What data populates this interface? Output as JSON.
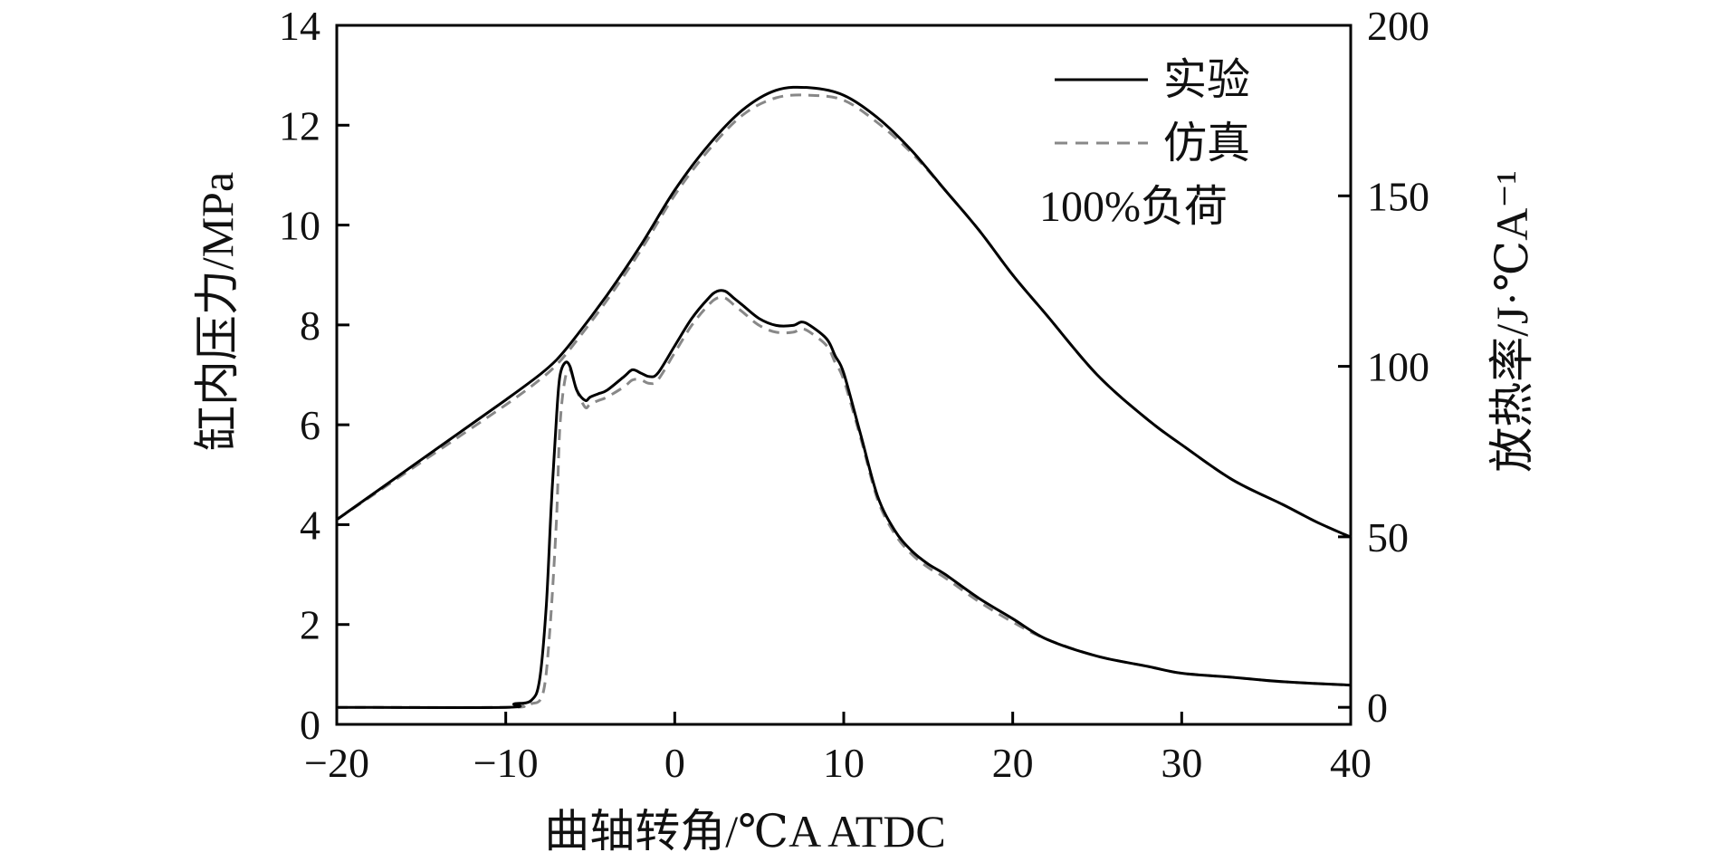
{
  "chart_data": {
    "type": "line",
    "title": "",
    "xlabel": "曲轴转角/℃A ATDC",
    "ylabel_left": "缸内压力/MPa",
    "ylabel_right": "放热率/J·℃A⁻¹",
    "xlim": [
      -20,
      40
    ],
    "ylim_left": [
      0,
      14
    ],
    "ylim_right": [
      -5,
      200
    ],
    "x_ticks": [
      -20,
      -10,
      0,
      10,
      20,
      30,
      40
    ],
    "x_tick_labels": [
      "−20",
      "−10",
      "0",
      "10",
      "20",
      "30",
      "40"
    ],
    "y_left_ticks": [
      0,
      2,
      4,
      6,
      8,
      10,
      12,
      14
    ],
    "y_right_ticks": [
      0,
      50,
      100,
      150,
      200
    ],
    "grid": false,
    "legend_position": "top-right",
    "legend": [
      {
        "label": "实验",
        "style": "solid",
        "color": "#000000"
      },
      {
        "label": "仿真",
        "style": "dashed",
        "color": "#888888"
      }
    ],
    "annotation": "100%负荷",
    "series": [
      {
        "name": "实验",
        "quantity": "pressure",
        "axis": "left",
        "style": "solid",
        "x": [
          -20,
          -15,
          -10,
          -8,
          -7,
          -6,
          -4,
          -2,
          0,
          2,
          4,
          6,
          8,
          10,
          12,
          14,
          16,
          18,
          20,
          22,
          25,
          28,
          30,
          33,
          36,
          38,
          40
        ],
        "values": [
          4.1,
          5.3,
          6.5,
          7.0,
          7.3,
          7.7,
          8.6,
          9.6,
          10.7,
          11.6,
          12.3,
          12.7,
          12.75,
          12.6,
          12.15,
          11.5,
          10.7,
          9.9,
          9.0,
          8.2,
          7.0,
          6.1,
          5.6,
          4.9,
          4.4,
          4.05,
          3.75
        ]
      },
      {
        "name": "仿真",
        "quantity": "pressure",
        "axis": "left",
        "style": "dashed",
        "x": [
          -20,
          -15,
          -10,
          -8,
          -7,
          -6,
          -4,
          -2,
          0,
          2,
          4,
          6,
          8,
          10,
          12,
          14,
          16,
          18,
          20,
          22,
          25,
          28,
          30,
          33,
          36,
          38,
          40
        ],
        "values": [
          4.1,
          5.25,
          6.4,
          6.9,
          7.2,
          7.6,
          8.5,
          9.5,
          10.6,
          11.5,
          12.2,
          12.55,
          12.6,
          12.5,
          12.05,
          11.45,
          10.7,
          9.9,
          9.0,
          8.2,
          7.0,
          6.1,
          5.6,
          4.9,
          4.4,
          4.05,
          3.75
        ]
      },
      {
        "name": "实验",
        "quantity": "heat_release_rate",
        "axis": "right",
        "style": "solid",
        "x": [
          -20,
          -10,
          -9.5,
          -8.5,
          -8,
          -7.6,
          -7.3,
          -7,
          -6.8,
          -6.5,
          -6.2,
          -5.8,
          -5.3,
          -5,
          -4.5,
          -4,
          -3,
          -2.5,
          -2,
          -1.5,
          -1,
          0,
          1,
          2,
          2.5,
          3,
          3.5,
          4,
          5,
          6,
          7,
          7.5,
          8,
          9,
          9.5,
          10,
          11,
          12,
          13,
          14,
          15,
          16,
          18,
          20,
          22,
          25,
          28,
          30,
          33,
          36,
          40
        ],
        "values": [
          0,
          0,
          1,
          2,
          8,
          30,
          60,
          85,
          97,
          101,
          100,
          93,
          90,
          91,
          92,
          93,
          97,
          99,
          98,
          97,
          98,
          106,
          114,
          120,
          122,
          122,
          120,
          118,
          114,
          112,
          112,
          113,
          112,
          108,
          103,
          98,
          80,
          62,
          52,
          46,
          42,
          39,
          32,
          26,
          20,
          15,
          12,
          10,
          8.8,
          7.5,
          6.5
        ]
      },
      {
        "name": "仿真",
        "quantity": "heat_release_rate",
        "axis": "right",
        "style": "dashed",
        "x": [
          -20,
          -10,
          -9,
          -8.5,
          -7.8,
          -7.4,
          -7,
          -6.8,
          -6.5,
          -6.2,
          -5.8,
          -5.3,
          -5,
          -4.5,
          -4,
          -3,
          -2.5,
          -2,
          -1.5,
          -1,
          0,
          1,
          2,
          2.5,
          3,
          3.5,
          4,
          5,
          6,
          7,
          7.5,
          8,
          9,
          9.5,
          10,
          11,
          12,
          13,
          14,
          15,
          16,
          18,
          20,
          22,
          25,
          28,
          30,
          33,
          36,
          40
        ],
        "values": [
          0,
          0,
          0.5,
          1,
          4,
          22,
          55,
          82,
          96,
          99,
          93,
          88,
          89,
          90,
          91,
          94,
          96,
          96,
          95,
          96,
          104,
          112,
          118,
          120,
          120,
          118,
          116,
          112,
          110,
          110,
          111,
          110,
          106,
          101,
          96,
          79,
          61,
          51,
          45,
          41,
          38,
          31,
          25,
          20,
          15,
          12,
          10,
          8.8,
          7.5,
          6.5
        ]
      }
    ]
  }
}
